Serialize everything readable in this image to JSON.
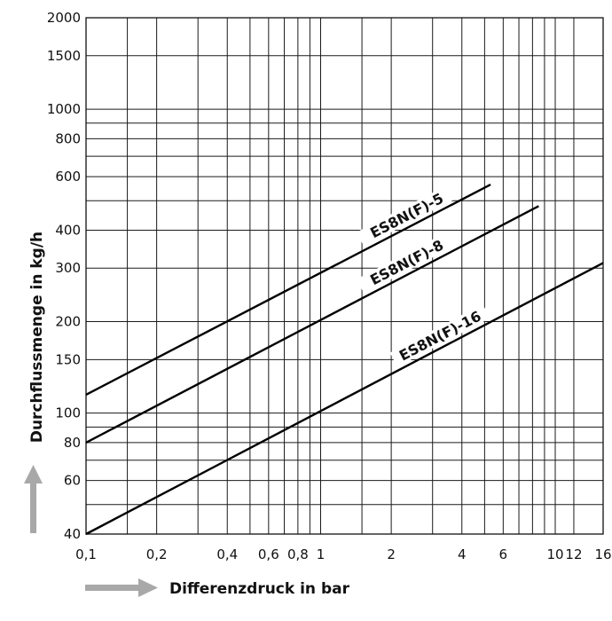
{
  "chart_data": {
    "type": "line",
    "xlabel": "Differenzdruck in bar",
    "ylabel": "Durchflussmenge in kg/h",
    "x_scale": "log",
    "y_scale": "log",
    "xlim": [
      0.1,
      16
    ],
    "ylim": [
      40,
      2000
    ],
    "grid": true,
    "x_ticks": [
      {
        "value": 0.1,
        "label": "0,1"
      },
      {
        "value": 0.2,
        "label": "0,2"
      },
      {
        "value": 0.4,
        "label": "0,4"
      },
      {
        "value": 0.6,
        "label": "0,6"
      },
      {
        "value": 0.8,
        "label": "0,8"
      },
      {
        "value": 1,
        "label": "1"
      },
      {
        "value": 2,
        "label": "2"
      },
      {
        "value": 4,
        "label": "4"
      },
      {
        "value": 6,
        "label": "6"
      },
      {
        "value": 10,
        "label": "10"
      },
      {
        "value": 12,
        "label": "12"
      },
      {
        "value": 16,
        "label": "16"
      }
    ],
    "y_ticks": [
      {
        "value": 40,
        "label": "40"
      },
      {
        "value": 60,
        "label": "60"
      },
      {
        "value": 80,
        "label": "80"
      },
      {
        "value": 100,
        "label": "100"
      },
      {
        "value": 150,
        "label": "150"
      },
      {
        "value": 200,
        "label": "200"
      },
      {
        "value": 300,
        "label": "300"
      },
      {
        "value": 400,
        "label": "400"
      },
      {
        "value": 600,
        "label": "600"
      },
      {
        "value": 800,
        "label": "800"
      },
      {
        "value": 1000,
        "label": "1000"
      },
      {
        "value": 1500,
        "label": "1500"
      },
      {
        "value": 2000,
        "label": "2000"
      }
    ],
    "x_gridlines": [
      0.1,
      0.15,
      0.2,
      0.3,
      0.4,
      0.5,
      0.6,
      0.7,
      0.8,
      0.9,
      1,
      1.5,
      2,
      3,
      4,
      5,
      6,
      7,
      8,
      9,
      10,
      12,
      16
    ],
    "y_gridlines": [
      40,
      50,
      60,
      70,
      80,
      90,
      100,
      150,
      200,
      300,
      400,
      500,
      600,
      700,
      800,
      900,
      1000,
      1500,
      2000
    ],
    "series": [
      {
        "name": "ES8N(F)-5",
        "x": [
          0.1,
          5.3
        ],
        "y": [
          115,
          565
        ]
      },
      {
        "name": "ES8N(F)-8",
        "x": [
          0.1,
          8.5
        ],
        "y": [
          80,
          480
        ]
      },
      {
        "name": "ES8N(F)-16",
        "x": [
          0.1,
          16
        ],
        "y": [
          40,
          312
        ]
      }
    ]
  }
}
